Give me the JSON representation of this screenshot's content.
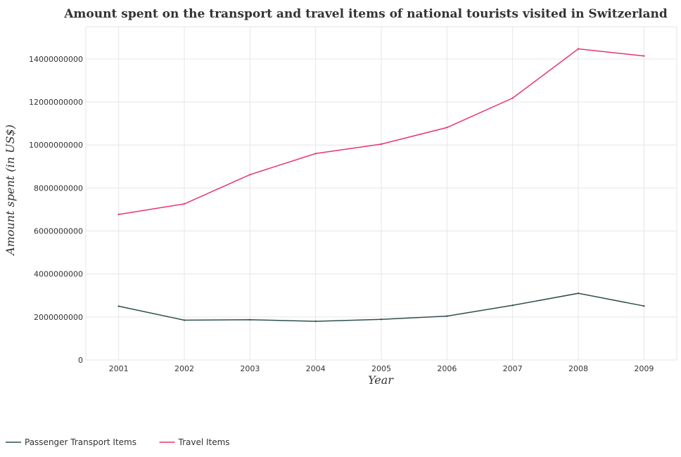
{
  "chart_data": {
    "type": "line",
    "title": "Amount spent on the transport and travel items of national tourists visited in Switzerland",
    "xlabel": "Year",
    "ylabel": "Amount spent (in US$)",
    "categories": [
      "2001",
      "2002",
      "2003",
      "2004",
      "2005",
      "2006",
      "2007",
      "2008",
      "2009"
    ],
    "ylim": [
      0,
      15500000000
    ],
    "yticks": [
      0,
      2000000000,
      4000000000,
      6000000000,
      8000000000,
      10000000000,
      12000000000,
      14000000000
    ],
    "ytick_labels": [
      "0",
      "2000000000",
      "4000000000",
      "6000000000",
      "8000000000",
      "10000000000",
      "12000000000",
      "14000000000"
    ],
    "grid": true,
    "legend_position": "bottom-left",
    "series": [
      {
        "name": "Passenger Transport Items",
        "color": "#2f4f4f",
        "values": [
          2500000000,
          1850000000,
          1870000000,
          1800000000,
          1890000000,
          2040000000,
          2540000000,
          3100000000,
          2510000000
        ]
      },
      {
        "name": "Travel Items",
        "color": "#e8336d",
        "values": [
          6770000000,
          7260000000,
          8620000000,
          9600000000,
          10040000000,
          10810000000,
          12180000000,
          14470000000,
          14140000000
        ]
      }
    ]
  }
}
